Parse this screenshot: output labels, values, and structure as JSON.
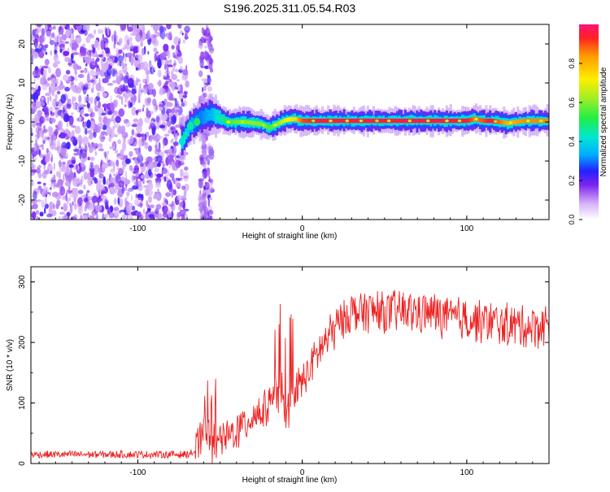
{
  "title": "S196.2025.311.05.54.R03",
  "chart_data": [
    {
      "type": "heatmap",
      "name": "spectrogram",
      "xlabel": "Height of straight line (km)",
      "ylabel": "Frequency (Hz)",
      "xlim": [
        -165,
        150
      ],
      "ylim": [
        -25,
        25
      ],
      "xticks": [
        -100,
        0,
        100
      ],
      "xtick_labels": [
        "-100",
        "0",
        "100"
      ],
      "yticks": [
        -20,
        -10,
        0,
        10,
        20
      ],
      "ytick_labels": [
        "-20",
        "-10",
        "0",
        "10",
        "20"
      ],
      "noise_region_km": [
        -165,
        -55
      ],
      "gaps_km": [
        [
          -70,
          -62
        ]
      ],
      "ridge": {
        "description_points_x": [
          -73,
          -68,
          -62,
          -55,
          -45,
          -35,
          -25,
          -20,
          -15,
          -10,
          -5,
          0,
          10,
          20,
          40,
          60,
          80,
          100,
          105,
          110,
          115,
          125,
          135,
          150
        ],
        "frequency_hz": [
          -5,
          -1,
          1,
          2,
          0,
          0,
          -0.5,
          -1.5,
          -0.5,
          0.5,
          0.8,
          0.3,
          0.3,
          0.3,
          0.3,
          0.3,
          0.3,
          0.3,
          0.8,
          0.3,
          0.3,
          -0.3,
          0.3,
          0.3
        ],
        "amplitude": [
          0.5,
          0.35,
          0.3,
          0.35,
          0.55,
          0.6,
          0.6,
          0.55,
          0.6,
          0.7,
          0.75,
          0.9,
          0.95,
          0.95,
          0.95,
          0.95,
          0.95,
          0.95,
          0.85,
          0.9,
          0.95,
          0.8,
          0.85,
          0.85
        ]
      },
      "colorbar": {
        "label": "Normalized spectral amplitude",
        "range": [
          0,
          1
        ],
        "ticks": [
          0,
          0.2,
          0.4,
          0.6,
          0.8
        ],
        "tick_labels": [
          "0.0",
          "0.2",
          "0.4",
          "0.6",
          "0.8"
        ]
      }
    },
    {
      "type": "line",
      "name": "snr",
      "xlabel": "Height of straight line (km)",
      "ylabel": "SNR (10 * v/v)",
      "xlim": [
        -165,
        150
      ],
      "ylim": [
        0,
        325
      ],
      "xticks": [
        -100,
        0,
        100
      ],
      "xtick_labels": [
        "-100",
        "0",
        "100"
      ],
      "yticks": [
        0,
        100,
        200,
        300
      ],
      "ytick_labels": [
        "0",
        "100",
        "200",
        "300"
      ],
      "series": [
        {
          "name": "SNR",
          "color": "#ee2222",
          "x": [
            -165,
            -150,
            -130,
            -110,
            -90,
            -70,
            -65,
            -60,
            -57,
            -55,
            -52,
            -45,
            -40,
            -35,
            -30,
            -25,
            -20,
            -15,
            -12,
            -10,
            -5,
            0,
            5,
            10,
            15,
            20,
            25,
            30,
            40,
            50,
            60,
            70,
            80,
            90,
            100,
            110,
            120,
            130,
            140,
            150
          ],
          "y": [
            15,
            15,
            15,
            15,
            15,
            15,
            20,
            45,
            60,
            35,
            30,
            45,
            55,
            65,
            80,
            85,
            100,
            110,
            120,
            85,
            115,
            135,
            160,
            185,
            205,
            225,
            240,
            250,
            252,
            248,
            252,
            250,
            248,
            240,
            238,
            235,
            230,
            228,
            226,
            230
          ]
        }
      ]
    }
  ],
  "colors": {
    "line": "#ee2222",
    "noise_purple": "#7a22ee",
    "noise_light": "#c9a8f2"
  }
}
